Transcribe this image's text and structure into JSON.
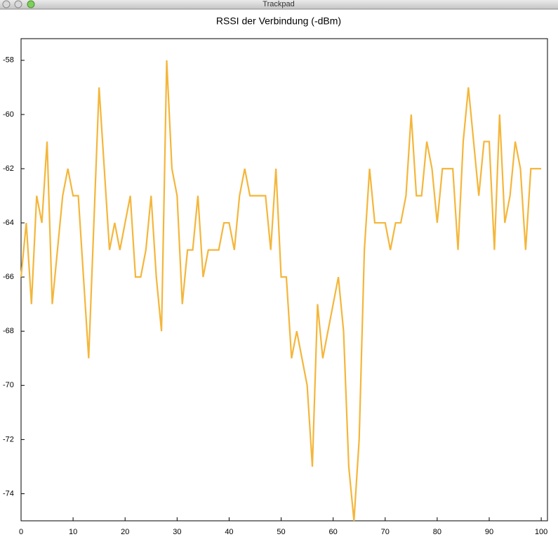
{
  "window_title": "Trackpad",
  "chart_data": {
    "type": "line",
    "title": "RSSI der Verbindung (-dBm)",
    "color": "#f4b63a",
    "x": [
      0,
      1,
      2,
      3,
      4,
      5,
      6,
      7,
      8,
      9,
      10,
      11,
      12,
      13,
      14,
      15,
      16,
      17,
      18,
      19,
      20,
      21,
      22,
      23,
      24,
      25,
      26,
      27,
      28,
      29,
      30,
      31,
      32,
      33,
      34,
      35,
      36,
      37,
      38,
      39,
      40,
      41,
      42,
      43,
      44,
      45,
      46,
      47,
      48,
      49,
      50,
      51,
      52,
      53,
      54,
      55,
      56,
      57,
      58,
      59,
      60,
      61,
      62,
      63,
      64,
      65,
      66,
      67,
      68,
      69,
      70,
      71,
      72,
      73,
      74,
      75,
      76,
      77,
      78,
      79,
      80,
      81,
      82,
      83,
      84,
      85,
      86,
      87,
      88,
      89,
      90,
      91,
      92,
      93,
      94,
      95,
      96,
      97,
      98,
      99,
      100
    ],
    "values": [
      -66,
      -64,
      -67,
      -63,
      -64,
      -61,
      -67,
      -65,
      -63,
      -62,
      -63,
      -63,
      -66,
      -69,
      -64,
      -59,
      -62,
      -65,
      -64,
      -65,
      -64,
      -63,
      -66,
      -66,
      -65,
      -63,
      -66,
      -68,
      -58,
      -62,
      -63,
      -67,
      -65,
      -65,
      -63,
      -66,
      -65,
      -65,
      -65,
      -64,
      -64,
      -65,
      -63,
      -62,
      -63,
      -63,
      -63,
      -63,
      -65,
      -62,
      -66,
      -66,
      -69,
      -68,
      -69,
      -70,
      -73,
      -67,
      -69,
      -68,
      -67,
      -66,
      -68,
      -73,
      -75,
      -72,
      -65,
      -62,
      -64,
      -64,
      -64,
      -65,
      -64,
      -64,
      -63,
      -60,
      -63,
      -63,
      -61,
      -62,
      -64,
      -62,
      -62,
      -62,
      -65,
      -61,
      -59,
      -61,
      -63,
      -61,
      -61,
      -65,
      -60,
      -64,
      -63,
      -61,
      -62,
      -65,
      -62,
      -62,
      -62
    ],
    "xlim": [
      0,
      101.2
    ],
    "xticks": [
      0,
      10,
      20,
      30,
      40,
      50,
      60,
      70,
      80,
      90,
      100
    ],
    "ylim": [
      -75,
      -57.2
    ],
    "yticks": [
      -74,
      -72,
      -70,
      -68,
      -66,
      -64,
      -62,
      -60,
      -58
    ]
  }
}
